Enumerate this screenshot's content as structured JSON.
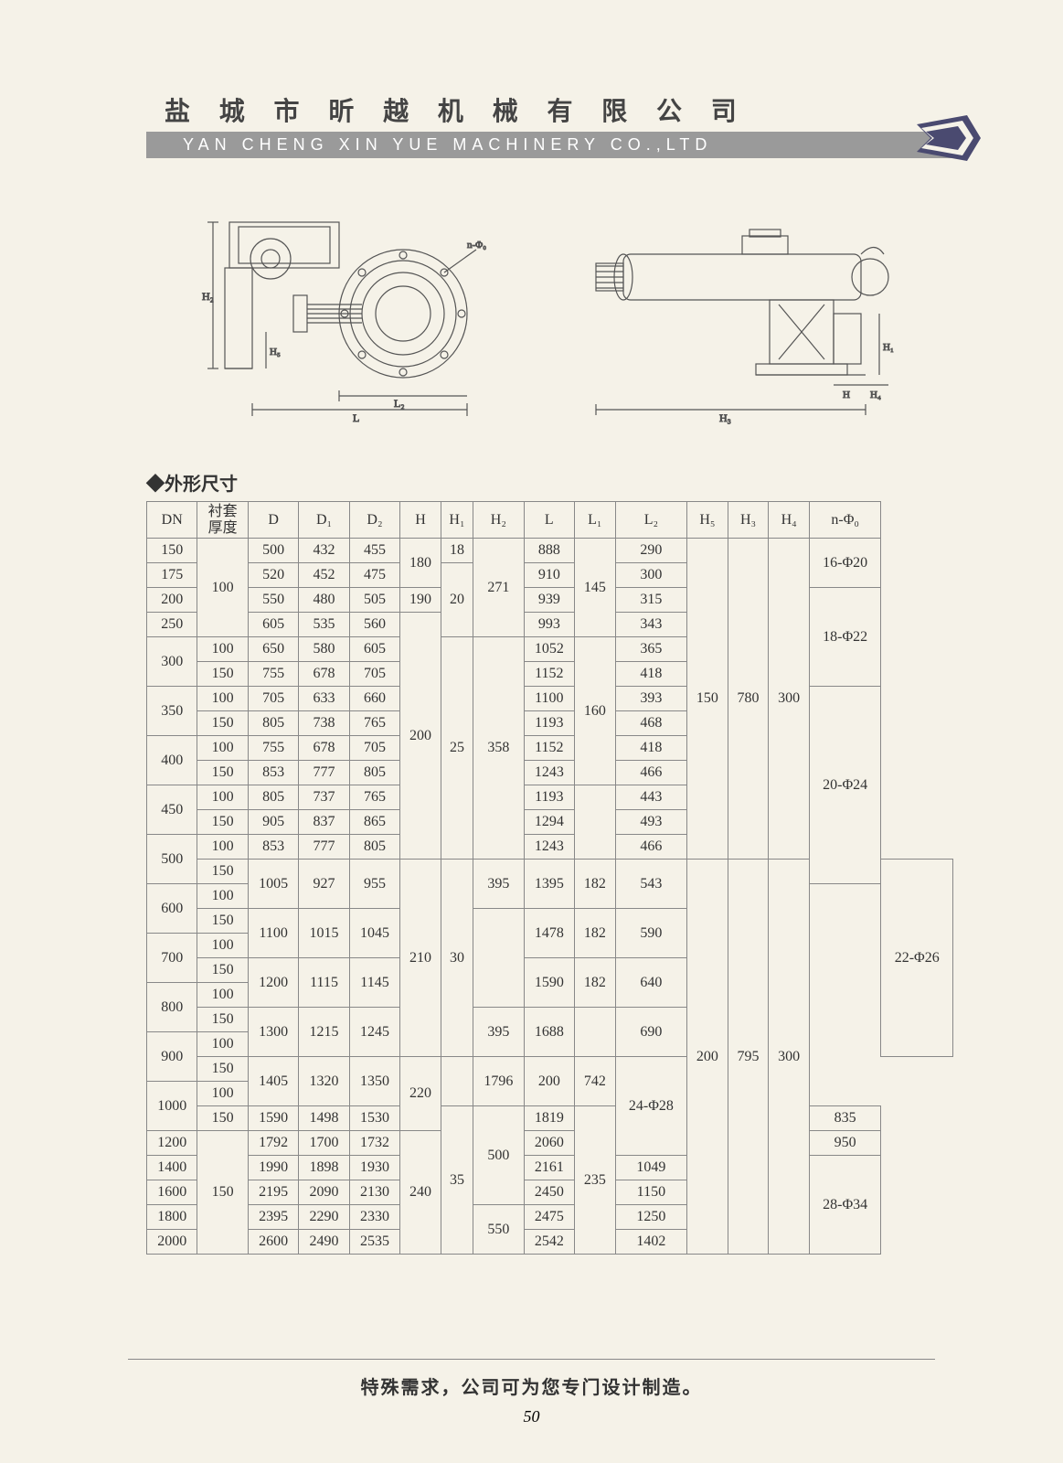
{
  "header": {
    "cn": "盐 城 市 昕 越 机 械 有 限 公 司",
    "en": "YAN CHENG XIN YUE MACHINERY CO.,LTD"
  },
  "section_title": "◆外形尺寸",
  "footer_text": "特殊需求，公司可为您专门设计制造。",
  "page_number": "50",
  "diagram_labels": {
    "left_H2": "H₂",
    "left_H5": "H₅",
    "left_L2": "L₂",
    "left_L": "L",
    "left_nphi": "n-Φ₀",
    "right_H3": "H₃",
    "right_H1": "H₁",
    "right_H": "H",
    "right_H4": "H₄"
  },
  "table": {
    "headers": [
      "DN",
      "衬套\n厚度",
      "D",
      "D₁",
      "D₂",
      "H",
      "H₁",
      "H₂",
      "L",
      "L₁",
      "L₂",
      "H₅",
      "H₃",
      "H₄",
      "n-Φ₀"
    ],
    "rows": [
      {
        "dn": "150",
        "thk": "",
        "d": "500",
        "d1": "432",
        "d2": "455",
        "h": "",
        "h1": "18",
        "h2": "",
        "l": "888",
        "l1": "",
        "l2": "290",
        "h5": "",
        "h3": "",
        "h4": "",
        "nphi": "16-Φ20"
      },
      {
        "dn": "175",
        "thk": "",
        "d": "520",
        "d1": "452",
        "d2": "475",
        "h": "",
        "h1": "",
        "h2": "",
        "l": "910",
        "l1": "",
        "l2": "300",
        "h5": "",
        "h3": "",
        "h4": "",
        "nphi": ""
      },
      {
        "dn": "200",
        "thk": "",
        "d": "550",
        "d1": "480",
        "d2": "505",
        "h": "190",
        "h1": "",
        "h2": "",
        "l": "939",
        "l1": "",
        "l2": "315",
        "h5": "",
        "h3": "",
        "h4": "",
        "nphi": ""
      },
      {
        "dn": "250",
        "thk": "",
        "d": "605",
        "d1": "535",
        "d2": "560",
        "h": "",
        "h1": "",
        "h2": "",
        "l": "993",
        "l1": "",
        "l2": "343",
        "h5": "",
        "h3": "",
        "h4": "",
        "nphi": ""
      },
      {
        "dn": "300",
        "thk": "100",
        "d": "650",
        "d1": "580",
        "d2": "605",
        "h": "",
        "h1": "",
        "h2": "",
        "l": "1052",
        "l1": "",
        "l2": "365",
        "h5": "",
        "h3": "",
        "h4": "",
        "nphi": ""
      },
      {
        "dn": "",
        "thk": "150",
        "d": "755",
        "d1": "678",
        "d2": "705",
        "h": "",
        "h1": "",
        "h2": "",
        "l": "1152",
        "l1": "",
        "l2": "418",
        "h5": "",
        "h3": "",
        "h4": "",
        "nphi": ""
      },
      {
        "dn": "350",
        "thk": "100",
        "d": "705",
        "d1": "633",
        "d2": "660",
        "h": "",
        "h1": "",
        "h2": "",
        "l": "1100",
        "l1": "",
        "l2": "393",
        "h5": "",
        "h3": "",
        "h4": "",
        "nphi": ""
      },
      {
        "dn": "",
        "thk": "150",
        "d": "805",
        "d1": "738",
        "d2": "765",
        "h": "",
        "h1": "",
        "h2": "",
        "l": "1193",
        "l1": "",
        "l2": "468",
        "h5": "",
        "h3": "",
        "h4": "",
        "nphi": ""
      },
      {
        "dn": "400",
        "thk": "100",
        "d": "755",
        "d1": "678",
        "d2": "705",
        "h": "",
        "h1": "",
        "h2": "",
        "l": "1152",
        "l1": "",
        "l2": "418",
        "h5": "",
        "h3": "",
        "h4": "",
        "nphi": ""
      },
      {
        "dn": "",
        "thk": "150",
        "d": "853",
        "d1": "777",
        "d2": "805",
        "h": "",
        "h1": "",
        "h2": "",
        "l": "1243",
        "l1": "",
        "l2": "466",
        "h5": "",
        "h3": "",
        "h4": "",
        "nphi": ""
      },
      {
        "dn": "450",
        "thk": "100",
        "d": "805",
        "d1": "737",
        "d2": "765",
        "h": "",
        "h1": "",
        "h2": "",
        "l": "1193",
        "l1": "",
        "l2": "443",
        "h5": "",
        "h3": "",
        "h4": "",
        "nphi": ""
      },
      {
        "dn": "",
        "thk": "150",
        "d": "905",
        "d1": "837",
        "d2": "865",
        "h": "",
        "h1": "",
        "h2": "",
        "l": "1294",
        "l1": "",
        "l2": "493",
        "h5": "",
        "h3": "",
        "h4": "",
        "nphi": ""
      },
      {
        "dn": "500",
        "thk": "100",
        "d": "853",
        "d1": "777",
        "d2": "805",
        "h": "",
        "h1": "",
        "h2": "",
        "l": "1243",
        "l1": "",
        "l2": "466",
        "h5": "",
        "h3": "",
        "h4": "",
        "nphi": ""
      },
      {
        "dn": "",
        "thk": "150",
        "d": "",
        "d1": "",
        "d2": "",
        "h": "",
        "h1": "",
        "h2": "",
        "l": "",
        "l1": "",
        "l2": "",
        "h5": "",
        "h3": "",
        "h4": "",
        "nphi": ""
      },
      {
        "dn": "600",
        "thk": "100",
        "d": "",
        "d1": "",
        "d2": "",
        "h": "",
        "h1": "",
        "h2": "",
        "l": "",
        "l1": "",
        "l2": "",
        "h5": "",
        "h3": "",
        "h4": "",
        "nphi": ""
      },
      {
        "dn": "",
        "thk": "150",
        "d": "",
        "d1": "",
        "d2": "",
        "h": "",
        "h1": "",
        "h2": "",
        "l": "",
        "l1": "",
        "l2": "",
        "h5": "",
        "h3": "",
        "h4": "",
        "nphi": ""
      },
      {
        "dn": "700",
        "thk": "100",
        "d": "",
        "d1": "",
        "d2": "",
        "h": "",
        "h1": "",
        "h2": "",
        "l": "",
        "l1": "",
        "l2": "",
        "h5": "",
        "h3": "",
        "h4": "",
        "nphi": ""
      },
      {
        "dn": "",
        "thk": "150",
        "d": "",
        "d1": "",
        "d2": "",
        "h": "",
        "h1": "",
        "h2": "",
        "l": "",
        "l1": "",
        "l2": "",
        "h5": "",
        "h3": "",
        "h4": "",
        "nphi": ""
      },
      {
        "dn": "800",
        "thk": "100",
        "d": "",
        "d1": "",
        "d2": "",
        "h": "",
        "h1": "",
        "h2": "",
        "l": "",
        "l1": "",
        "l2": "",
        "h5": "",
        "h3": "",
        "h4": "",
        "nphi": ""
      },
      {
        "dn": "",
        "thk": "150",
        "d": "",
        "d1": "",
        "d2": "",
        "h": "",
        "h1": "",
        "h2": "",
        "l": "",
        "l1": "",
        "l2": "",
        "h5": "",
        "h3": "",
        "h4": "",
        "nphi": ""
      },
      {
        "dn": "900",
        "thk": "100",
        "d": "",
        "d1": "",
        "d2": "",
        "h": "",
        "h1": "",
        "h2": "",
        "l": "",
        "l1": "",
        "l2": "",
        "h5": "",
        "h3": "",
        "h4": "",
        "nphi": ""
      },
      {
        "dn": "",
        "thk": "150",
        "d": "",
        "d1": "",
        "d2": "",
        "h": "",
        "h1": "",
        "h2": "",
        "l": "",
        "l1": "",
        "l2": "",
        "h5": "",
        "h3": "",
        "h4": "",
        "nphi": ""
      },
      {
        "dn": "1000",
        "thk": "100",
        "d": "",
        "d1": "",
        "d2": "",
        "h": "",
        "h1": "",
        "h2": "",
        "l": "",
        "l1": "",
        "l2": "",
        "h5": "",
        "h3": "",
        "h4": "",
        "nphi": ""
      },
      {
        "dn": "",
        "thk": "150",
        "d": "1590",
        "d1": "1498",
        "d2": "1530",
        "h": "",
        "h1": "",
        "h2": "",
        "l": "1819",
        "l1": "",
        "l2": "835",
        "h5": "",
        "h3": "",
        "h4": "",
        "nphi": ""
      },
      {
        "dn": "1200",
        "thk": "",
        "d": "1792",
        "d1": "1700",
        "d2": "1732",
        "h": "",
        "h1": "",
        "h2": "",
        "l": "2060",
        "l1": "",
        "l2": "950",
        "h5": "",
        "h3": "",
        "h4": "",
        "nphi": ""
      },
      {
        "dn": "1400",
        "thk": "",
        "d": "1990",
        "d1": "1898",
        "d2": "1930",
        "h": "",
        "h1": "",
        "h2": "",
        "l": "2161",
        "l1": "",
        "l2": "1049",
        "h5": "",
        "h3": "",
        "h4": "",
        "nphi": ""
      },
      {
        "dn": "1600",
        "thk": "",
        "d": "2195",
        "d1": "2090",
        "d2": "2130",
        "h": "",
        "h1": "",
        "h2": "",
        "l": "2450",
        "l1": "",
        "l2": "1150",
        "h5": "",
        "h3": "",
        "h4": "",
        "nphi": ""
      },
      {
        "dn": "1800",
        "thk": "",
        "d": "2395",
        "d1": "2290",
        "d2": "2330",
        "h": "",
        "h1": "",
        "h2": "",
        "l": "2475",
        "l1": "",
        "l2": "1250",
        "h5": "",
        "h3": "",
        "h4": "",
        "nphi": ""
      },
      {
        "dn": "2000",
        "thk": "",
        "d": "2600",
        "d1": "2490",
        "d2": "2535",
        "h": "",
        "h1": "",
        "h2": "",
        "l": "2542",
        "l1": "",
        "l2": "1402",
        "h5": "",
        "h3": "",
        "h4": "",
        "nphi": ""
      }
    ],
    "merged": {
      "thk_100_r0": {
        "text": "100",
        "span": 4
      },
      "h_180": {
        "text": "180",
        "span": 2
      },
      "h1_20": {
        "text": "20",
        "span": 3
      },
      "h2_271": {
        "text": "271",
        "span": 4
      },
      "l1_145": {
        "text": "145",
        "span": 4
      },
      "h5_150": {
        "text": "150",
        "span": 13
      },
      "h3_780": {
        "text": "780",
        "span": 13
      },
      "h4_300a": {
        "text": "300",
        "span": 13
      },
      "nphi_18": {
        "text": "18-Φ22",
        "span": 4
      },
      "h_200a": {
        "text": "200",
        "span": 10
      },
      "h1_25": {
        "text": "25",
        "span": 9
      },
      "h2_358": {
        "text": "358",
        "span": 9
      },
      "l1_160": {
        "text": "160",
        "span": 6
      },
      "nphi_20": {
        "text": "20-Φ24",
        "span": 8
      },
      "d_1005": {
        "text": "1005",
        "span": 2
      },
      "d1_927": {
        "text": "927",
        "span": 2
      },
      "d2_955": {
        "text": "955",
        "span": 2
      },
      "l_1395": {
        "text": "1395",
        "span": 2
      },
      "l1_182a": {
        "text": "182",
        "span": 2
      },
      "l2_543": {
        "text": "543",
        "span": 2
      },
      "h2_395a": {
        "text": "395",
        "span": 2
      },
      "d_1100": {
        "text": "1100",
        "span": 2
      },
      "d1_1015": {
        "text": "1015",
        "span": 2
      },
      "d2_1045": {
        "text": "1045",
        "span": 2
      },
      "l_1478": {
        "text": "1478",
        "span": 2
      },
      "l2_590": {
        "text": "590",
        "span": 2
      },
      "l1_182b": {
        "text": "182",
        "span": 2
      },
      "d_1200": {
        "text": "1200",
        "span": 2
      },
      "d1_1115": {
        "text": "1115",
        "span": 2
      },
      "d2_1145": {
        "text": "1145",
        "span": 2
      },
      "l_1590": {
        "text": "1590",
        "span": 2
      },
      "l2_640": {
        "text": "640",
        "span": 2
      },
      "l1_182c": {
        "text": "182",
        "span": 2
      },
      "d_1300": {
        "text": "1300",
        "span": 2
      },
      "d1_1215": {
        "text": "1215",
        "span": 2
      },
      "d2_1245": {
        "text": "1245",
        "span": 2
      },
      "l_1688": {
        "text": "1688",
        "span": 2
      },
      "l2_690": {
        "text": "690",
        "span": 2
      },
      "h2_395b": {
        "text": "395",
        "span": 2
      },
      "d_1405": {
        "text": "1405",
        "span": 2
      },
      "d1_1320": {
        "text": "1320",
        "span": 2
      },
      "d2_1350": {
        "text": "1350",
        "span": 2
      },
      "l_1796": {
        "text": "1796",
        "span": 2
      },
      "l1_200": {
        "text": "200",
        "span": 2
      },
      "l2_742": {
        "text": "742",
        "span": 2
      },
      "h_210": {
        "text": "210",
        "span": 8
      },
      "h1_30": {
        "text": "30",
        "span": 8
      },
      "h5_200": {
        "text": "200",
        "span": 16
      },
      "h3_795": {
        "text": "795",
        "span": 16
      },
      "h4_300b": {
        "text": "300",
        "span": 16
      },
      "nphi_22": {
        "text": "22-Φ26",
        "span": 8
      },
      "h_220": {
        "text": "220",
        "span": 3
      },
      "nphi_24": {
        "text": "24-Φ28",
        "span": 4
      },
      "h1_35": {
        "text": "35",
        "span": 6
      },
      "h2_500": {
        "text": "500",
        "span": 4
      },
      "l1_235": {
        "text": "235",
        "span": 5
      },
      "thk_150_last": {
        "text": "150",
        "span": 5
      },
      "h_240": {
        "text": "240",
        "span": 3
      },
      "h2_550": {
        "text": "550",
        "span": 2
      },
      "nphi_28": {
        "text": "28-Φ34",
        "span": 4
      }
    }
  },
  "colors": {
    "page_bg": "#f5f2e8",
    "header_bar": "#9a9a9a",
    "text": "#333333",
    "line": "#888888"
  }
}
